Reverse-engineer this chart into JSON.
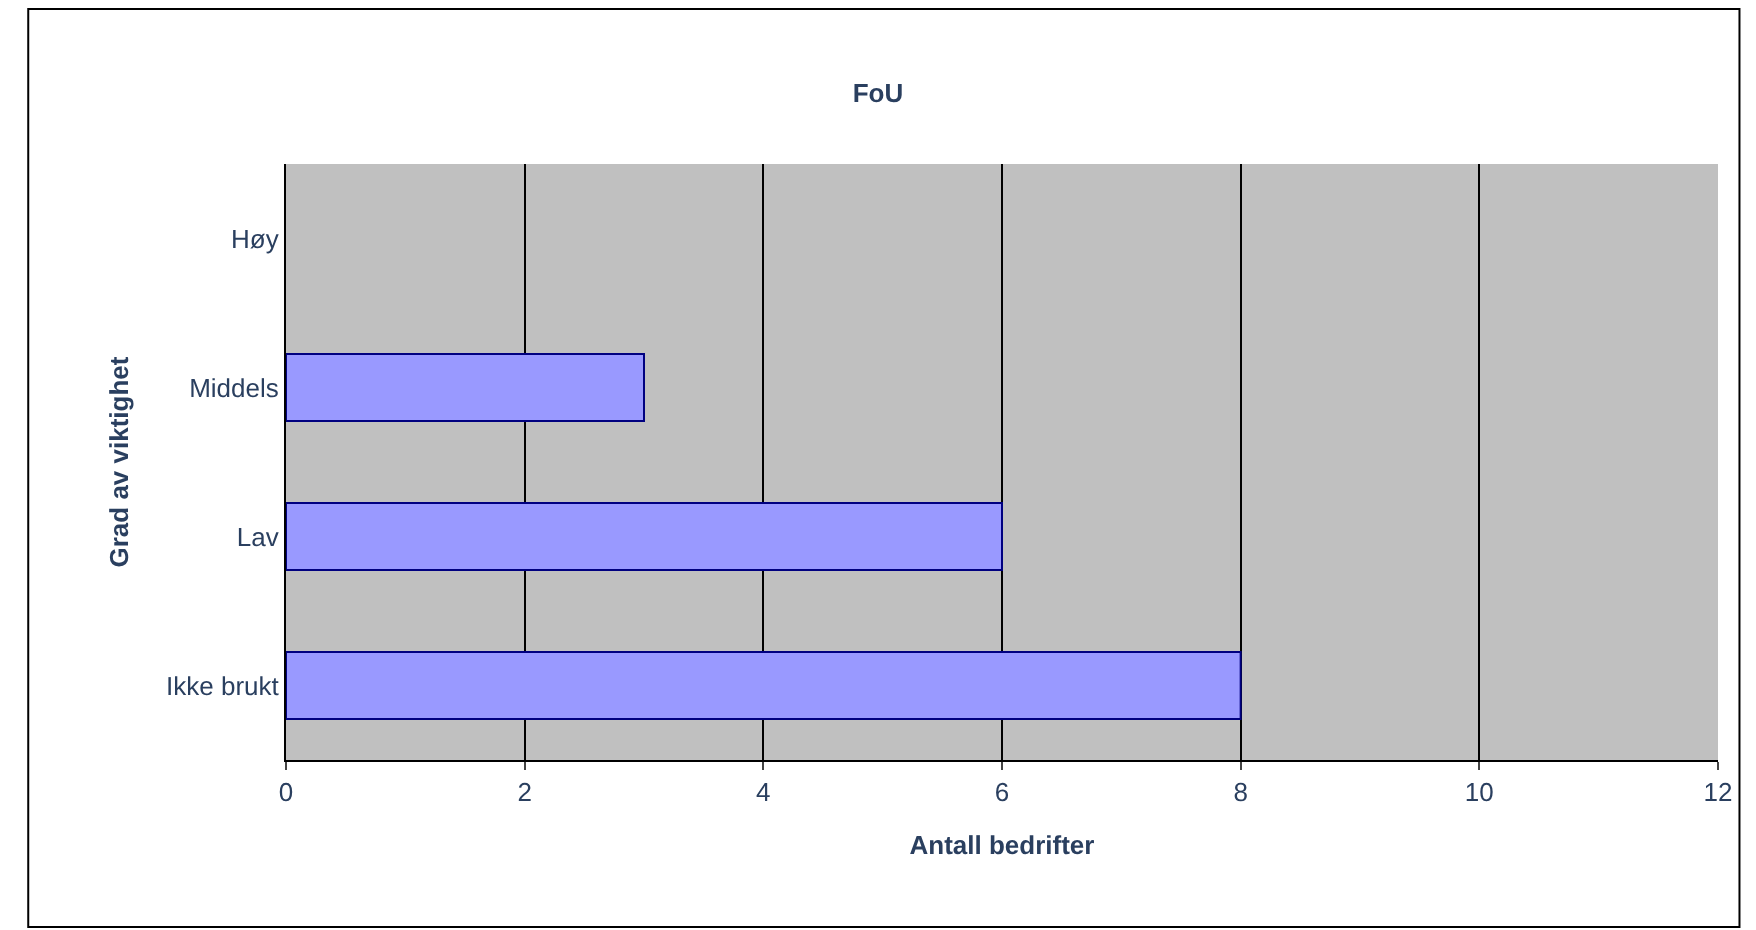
{
  "chart_data": {
    "type": "bar",
    "orientation": "horizontal",
    "title": "FoU",
    "xlabel": "Antall bedrifter",
    "ylabel": "Grad av viktighet",
    "categories": [
      "Høy",
      "Middels",
      "Lav",
      "Ikke brukt"
    ],
    "values": [
      0,
      3,
      6,
      8
    ],
    "color": "#9999ff",
    "xlim": [
      0,
      12
    ],
    "xticks": [
      0,
      2,
      4,
      6,
      8,
      10,
      12
    ],
    "grid": "x"
  }
}
